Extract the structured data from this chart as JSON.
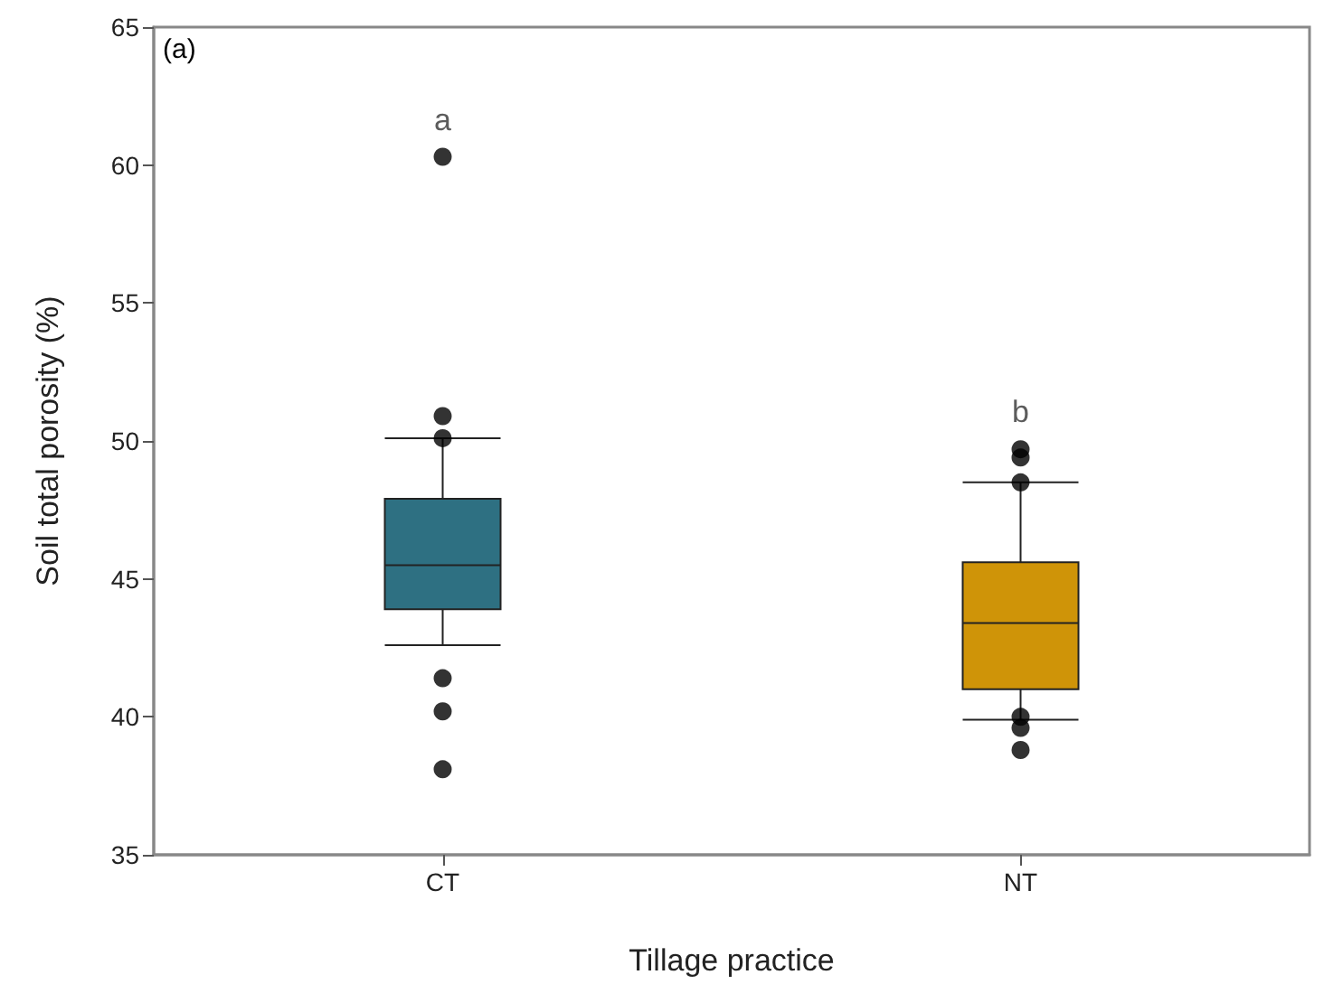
{
  "chart_data": {
    "type": "box",
    "xlabel": "Tillage practice",
    "ylabel": "Soil total porosity (%)",
    "categories": [
      "CT",
      "NT"
    ],
    "series": [
      {
        "type": "box",
        "colors": [
          "#2e7082",
          "#cf9408"
        ],
        "boxes": [
          {
            "low": 42.6,
            "q1": 43.9,
            "median": 45.5,
            "q3": 47.9,
            "high": 50.1,
            "outliers": [
              60.3,
              50.9,
              50.1,
              41.4,
              40.2,
              38.1
            ]
          },
          {
            "low": 39.9,
            "q1": 41.0,
            "median": 43.4,
            "q3": 45.6,
            "high": 48.5,
            "outliers": [
              49.7,
              49.4,
              48.5,
              40.0,
              39.6,
              38.8
            ]
          }
        ]
      }
    ],
    "annotations": [
      "(a)",
      "a",
      "b"
    ],
    "ylim": [
      35,
      65
    ],
    "yticks": [
      35,
      40,
      45,
      50,
      55,
      60,
      65
    ],
    "grid": false,
    "marker": "circle"
  }
}
